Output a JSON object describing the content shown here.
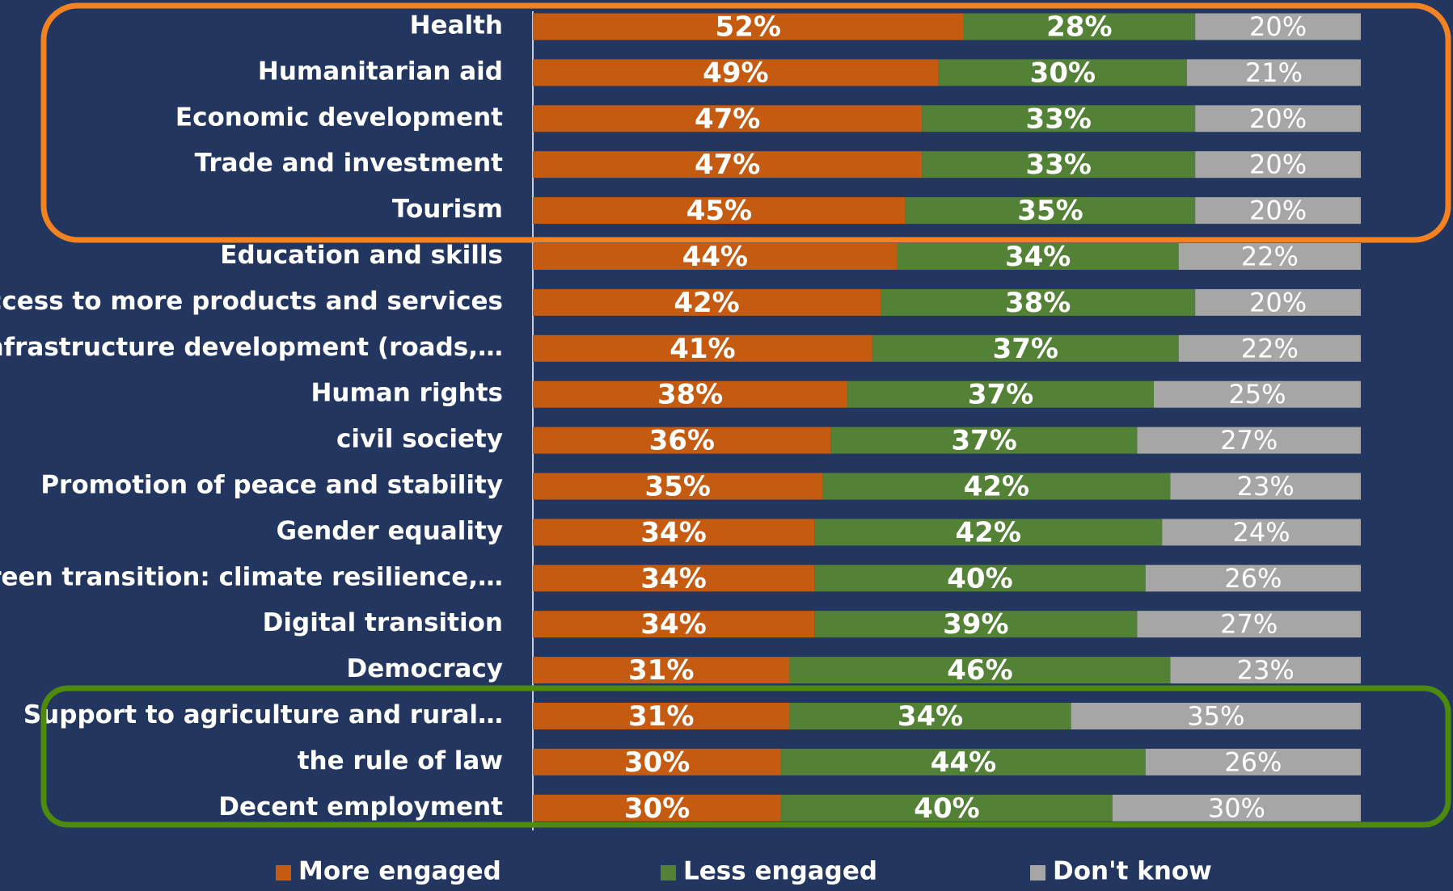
{
  "chart_data": {
    "type": "stacked_barh",
    "categories": [
      "Health",
      "Humanitarian aid",
      "Economic development",
      "Trade and investment",
      "Tourism",
      "Education and skills",
      "Access to more products and services",
      "Infrastructure development (roads,…",
      "Human rights",
      "civil society",
      "Promotion of peace and stability",
      "Gender equality",
      "Green transition: climate resilience,…",
      "Digital transition",
      "Democracy",
      "Support to agriculture and rural…",
      "the rule of law",
      "Decent employment"
    ],
    "series": [
      {
        "name": "More engaged",
        "color": "#c55a11",
        "values": [
          52,
          49,
          47,
          47,
          45,
          44,
          42,
          41,
          38,
          36,
          35,
          34,
          34,
          34,
          31,
          31,
          30,
          30
        ],
        "value_labels": [
          "52%",
          "49%",
          "47%",
          "47%",
          "45%",
          "44%",
          "42%",
          "41%",
          "38%",
          "36%",
          "35%",
          "34%",
          "34%",
          "34%",
          "31%",
          "31%",
          "30%",
          "30%"
        ]
      },
      {
        "name": "Less engaged",
        "color": "#538135",
        "values": [
          28,
          30,
          33,
          33,
          35,
          34,
          38,
          37,
          37,
          37,
          42,
          42,
          40,
          39,
          46,
          34,
          44,
          40
        ],
        "value_labels": [
          "28%",
          "30%",
          "33%",
          "33%",
          "35%",
          "34%",
          "38%",
          "37%",
          "37%",
          "37%",
          "42%",
          "42%",
          "40%",
          "39%",
          "46%",
          "34%",
          "44%",
          "40%"
        ]
      },
      {
        "name": "Don't know",
        "color": "#a6a6a6",
        "values": [
          20,
          21,
          20,
          20,
          20,
          22,
          20,
          22,
          25,
          27,
          23,
          24,
          26,
          27,
          23,
          35,
          26,
          30
        ],
        "value_labels": [
          "20%",
          "21%",
          "20%",
          "20%",
          "20%",
          "22%",
          "20%",
          "22%",
          "25%",
          "27%",
          "23%",
          "24%",
          "26%",
          "27%",
          "23%",
          "35%",
          "26%",
          "30%"
        ]
      }
    ],
    "xlim": [
      0,
      100
    ]
  }
}
